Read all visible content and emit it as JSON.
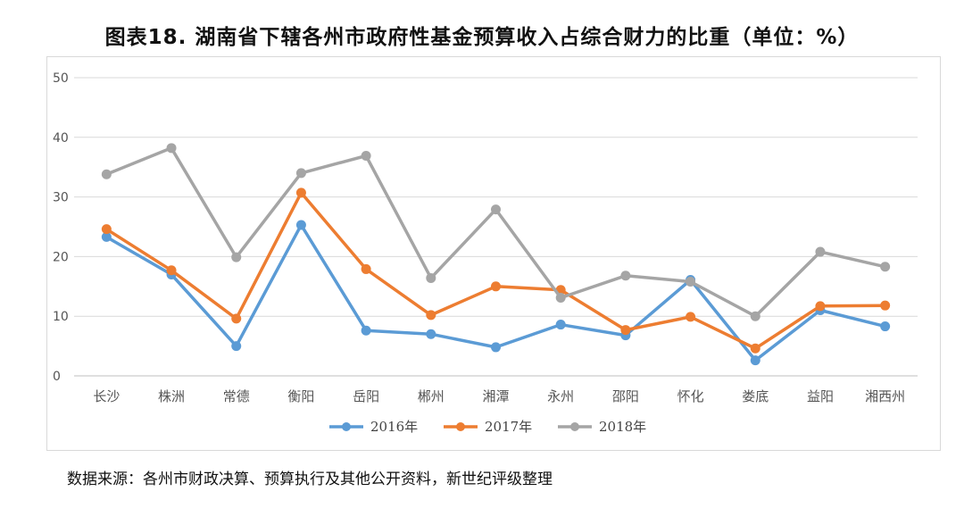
{
  "title": "图表18.   湖南省下辖各州市政府性基金预算收入占综合财力的比重（单位：%）",
  "source": "数据来源：各州市财政决算、预算执行及其他公开资料，新世纪评级整理",
  "chart_data": {
    "type": "line",
    "categories": [
      "长沙",
      "株洲",
      "常德",
      "衡阳",
      "岳阳",
      "郴州",
      "湘潭",
      "永州",
      "邵阳",
      "怀化",
      "娄底",
      "益阳",
      "湘西州"
    ],
    "ylim": [
      0,
      50
    ],
    "yticks": [
      0,
      10,
      20,
      30,
      40,
      50
    ],
    "grid": true,
    "legend_position": "bottom",
    "series": [
      {
        "name": "2016年",
        "color": "#5b9bd5",
        "values": [
          23.3,
          17.0,
          5.0,
          25.3,
          7.6,
          7.0,
          4.8,
          8.6,
          6.8,
          16.1,
          2.6,
          11.0,
          8.3
        ]
      },
      {
        "name": "2017年",
        "color": "#ed7d31",
        "values": [
          24.6,
          17.7,
          9.6,
          30.7,
          17.9,
          10.2,
          15.0,
          14.4,
          7.7,
          9.9,
          4.6,
          11.7,
          11.8
        ]
      },
      {
        "name": "2018年",
        "color": "#a5a5a5",
        "values": [
          33.8,
          38.2,
          19.9,
          34.0,
          36.9,
          16.4,
          27.9,
          13.1,
          16.8,
          15.8,
          10.0,
          20.8,
          18.3
        ]
      }
    ]
  }
}
